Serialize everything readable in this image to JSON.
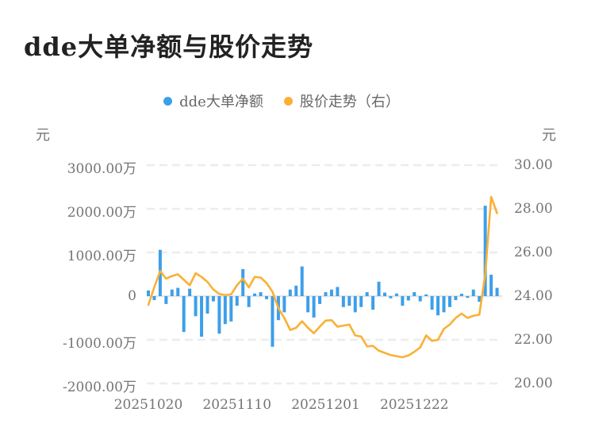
{
  "page": {
    "title": "dde大单净额与股价走势"
  },
  "chart_data": {
    "type": "bar",
    "title": "dde大单净额与股价走势",
    "legend_position": "top-center",
    "grid": "dashed-horizontal",
    "n_points": 60,
    "x_axis": {
      "tick_labels": [
        "20251020",
        "20251110",
        "20251201",
        "20251222"
      ],
      "tick_indices": [
        0,
        15,
        30,
        45
      ],
      "description": "trading days from 2025-10-20, one bar per day"
    },
    "y_axis_left": {
      "unit": "元",
      "ticks": [
        "3000.00万",
        "2000.00万",
        "1000.00万",
        "0",
        "-1000.00万",
        "-2000.00万"
      ],
      "tick_values_wan": [
        3000,
        2000,
        1000,
        0,
        -1000,
        -2000
      ],
      "range_wan": [
        -2000,
        3000
      ]
    },
    "y_axis_right": {
      "unit": "元",
      "ticks": [
        "30.00",
        "28.00",
        "26.00",
        "24.00",
        "22.00",
        "20.00"
      ],
      "tick_values": [
        30,
        28,
        26,
        24,
        22,
        20
      ],
      "range": [
        20,
        30
      ]
    },
    "series": [
      {
        "name": "dde大单净额",
        "type": "bar",
        "axis": "left",
        "unit": "万元",
        "color": "#3D9FE9",
        "values": [
          130,
          -90,
          1060,
          -180,
          150,
          190,
          -820,
          170,
          -460,
          -930,
          -400,
          -120,
          -860,
          -640,
          -580,
          -220,
          620,
          -250,
          60,
          90,
          -70,
          -1160,
          -550,
          -370,
          150,
          240,
          680,
          -370,
          -490,
          -180,
          90,
          150,
          210,
          -250,
          -220,
          -370,
          -250,
          90,
          -310,
          330,
          80,
          -50,
          60,
          -220,
          -100,
          90,
          -120,
          40,
          -310,
          -440,
          -370,
          -250,
          -90,
          55,
          -40,
          150,
          -130,
          2070,
          490,
          190
        ]
      },
      {
        "name": "股价走势（右）",
        "type": "line",
        "axis": "right",
        "unit": "元",
        "color": "#FBB034",
        "values": [
          23.6,
          24.4,
          25.15,
          24.8,
          24.92,
          25.0,
          24.75,
          24.5,
          25.05,
          24.88,
          24.65,
          24.3,
          24.1,
          24.05,
          24.08,
          24.5,
          24.8,
          24.4,
          24.88,
          24.85,
          24.6,
          24.2,
          23.45,
          23.0,
          22.45,
          22.55,
          22.85,
          22.55,
          22.3,
          22.6,
          22.88,
          22.9,
          22.6,
          22.65,
          22.7,
          22.2,
          22.15,
          21.7,
          21.72,
          21.5,
          21.4,
          21.3,
          21.25,
          21.2,
          21.28,
          21.45,
          21.65,
          22.2,
          21.95,
          22.0,
          22.5,
          22.7,
          23.0,
          23.2,
          23.0,
          23.1,
          23.15,
          25.0,
          28.55,
          27.8
        ]
      }
    ],
    "colors": {
      "bar": "#3D9FE9",
      "line": "#FBB034",
      "grid": "#ECECEC",
      "zero_line": "#E6E6E6",
      "axis_text": "#757575",
      "title_text": "#222222"
    }
  }
}
